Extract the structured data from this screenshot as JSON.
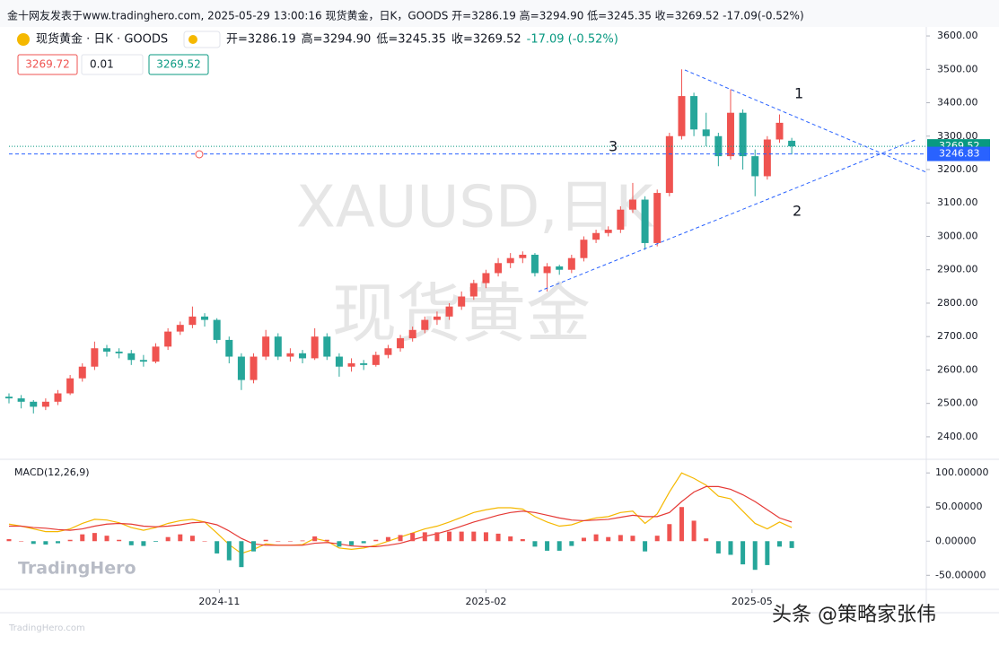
{
  "header": {
    "caption": "金十网友发表于www.tradinghero.com, 2025-05-29 13:00:16 现货黄金，日K，GOODS 开=3286.19 高=3294.90 低=3245.35 收=3269.52 -17.09(-0.52%)",
    "legend_title": "现货黄金 · 日K · GOODS",
    "legend_items": [
      "开=3286.19",
      "高=3294.90",
      "低=3245.35",
      "收=3269.52",
      "-17.09 (-0.52%)"
    ],
    "inputs": [
      "3269.72",
      "0.01",
      "3269.52"
    ]
  },
  "watermark": [
    "XAUUSD,日K",
    "现货黄金"
  ],
  "annotations": [
    "1",
    "2",
    "3"
  ],
  "footer": {
    "logo": "TradingHero",
    "site": "TradingHero.com",
    "credit": "头条 @策略家张伟"
  },
  "chart_data": [
    {
      "type": "candlestick",
      "up_color": "#ef5350",
      "down_color": "#26a69a",
      "xlim": [
        0,
        75
      ],
      "ylim": [
        2338,
        3627
      ],
      "xticks": [
        {
          "value": 17.2,
          "label": "2024-11"
        },
        {
          "value": 39,
          "label": "2025-02"
        },
        {
          "value": 60.75,
          "label": "2025-05"
        }
      ],
      "yticks": [
        {
          "value": 2400,
          "label": "2400.00"
        },
        {
          "value": 2500,
          "label": "2500.00"
        },
        {
          "value": 2600,
          "label": "2600.00"
        },
        {
          "value": 2700,
          "label": "2700.00"
        },
        {
          "value": 2800,
          "label": "2800.00"
        },
        {
          "value": 2900,
          "label": "2900.00"
        },
        {
          "value": 3000,
          "label": "3000.00"
        },
        {
          "value": 3100,
          "label": "3100.00"
        },
        {
          "value": 3200,
          "label": "3200.00"
        },
        {
          "value": 3300,
          "label": "3300.00"
        },
        {
          "value": 3400,
          "label": "3400.00"
        },
        {
          "value": 3500,
          "label": "3500.00"
        },
        {
          "value": 3600,
          "label": "3600.00"
        }
      ],
      "price_lines": [
        {
          "value": 3269.52,
          "color": "#089981",
          "style": "dotted"
        },
        {
          "value": 3246.83,
          "color": "#2962ff",
          "style": "dashed"
        }
      ],
      "candles": [
        [
          2520,
          2530,
          2500,
          2515
        ],
        [
          2515,
          2525,
          2485,
          2505
        ],
        [
          2505,
          2510,
          2470,
          2490
        ],
        [
          2490,
          2515,
          2480,
          2505
        ],
        [
          2505,
          2540,
          2495,
          2530
        ],
        [
          2530,
          2585,
          2525,
          2575
        ],
        [
          2575,
          2620,
          2565,
          2610
        ],
        [
          2610,
          2685,
          2600,
          2665
        ],
        [
          2665,
          2675,
          2640,
          2655
        ],
        [
          2655,
          2665,
          2635,
          2650
        ],
        [
          2650,
          2660,
          2615,
          2630
        ],
        [
          2630,
          2645,
          2610,
          2625
        ],
        [
          2625,
          2680,
          2620,
          2670
        ],
        [
          2670,
          2725,
          2660,
          2715
        ],
        [
          2715,
          2745,
          2705,
          2735
        ],
        [
          2735,
          2790,
          2725,
          2760
        ],
        [
          2760,
          2770,
          2730,
          2750
        ],
        [
          2750,
          2755,
          2680,
          2690
        ],
        [
          2690,
          2700,
          2620,
          2640
        ],
        [
          2640,
          2650,
          2540,
          2570
        ],
        [
          2570,
          2650,
          2560,
          2640
        ],
        [
          2640,
          2720,
          2630,
          2700
        ],
        [
          2700,
          2710,
          2630,
          2640
        ],
        [
          2640,
          2665,
          2625,
          2650
        ],
        [
          2650,
          2660,
          2620,
          2635
        ],
        [
          2635,
          2725,
          2630,
          2700
        ],
        [
          2700,
          2710,
          2630,
          2640
        ],
        [
          2640,
          2650,
          2580,
          2610
        ],
        [
          2610,
          2635,
          2595,
          2620
        ],
        [
          2620,
          2630,
          2600,
          2615
        ],
        [
          2615,
          2655,
          2610,
          2645
        ],
        [
          2645,
          2675,
          2635,
          2665
        ],
        [
          2665,
          2705,
          2655,
          2695
        ],
        [
          2695,
          2730,
          2685,
          2720
        ],
        [
          2720,
          2760,
          2710,
          2750
        ],
        [
          2750,
          2775,
          2735,
          2760
        ],
        [
          2760,
          2800,
          2750,
          2790
        ],
        [
          2790,
          2835,
          2780,
          2820
        ],
        [
          2820,
          2870,
          2810,
          2860
        ],
        [
          2860,
          2900,
          2845,
          2890
        ],
        [
          2890,
          2935,
          2880,
          2920
        ],
        [
          2920,
          2950,
          2905,
          2935
        ],
        [
          2935,
          2955,
          2920,
          2945
        ],
        [
          2945,
          2950,
          2880,
          2890
        ],
        [
          2890,
          2920,
          2835,
          2910
        ],
        [
          2910,
          2915,
          2885,
          2900
        ],
        [
          2900,
          2945,
          2890,
          2935
        ],
        [
          2935,
          3000,
          2925,
          2990
        ],
        [
          2990,
          3020,
          2980,
          3010
        ],
        [
          3010,
          3030,
          3000,
          3020
        ],
        [
          3020,
          3090,
          3010,
          3080
        ],
        [
          3080,
          3160,
          3070,
          3110
        ],
        [
          3110,
          3120,
          2960,
          2980
        ],
        [
          2980,
          3140,
          2970,
          3130
        ],
        [
          3130,
          3310,
          3120,
          3300
        ],
        [
          3300,
          3500,
          3290,
          3420
        ],
        [
          3420,
          3430,
          3300,
          3320
        ],
        [
          3320,
          3370,
          3270,
          3300
        ],
        [
          3300,
          3310,
          3210,
          3240
        ],
        [
          3240,
          3440,
          3230,
          3370
        ],
        [
          3370,
          3380,
          3200,
          3240
        ],
        [
          3240,
          3260,
          3120,
          3180
        ],
        [
          3180,
          3300,
          3170,
          3290
        ],
        [
          3290,
          3365,
          3280,
          3340
        ],
        [
          3286.19,
          3294.9,
          3245.35,
          3269.52
        ]
      ]
    },
    {
      "type": "macd",
      "title": "MACD(12,26,9)",
      "xlim": [
        0,
        75
      ],
      "ylim": [
        -68,
        116
      ],
      "yticks": [
        {
          "value": -50,
          "label": "-50.00000"
        },
        {
          "value": 0,
          "label": "0.00000"
        },
        {
          "value": 50,
          "label": "50.00000"
        },
        {
          "value": 100,
          "label": "100.00000"
        }
      ],
      "series": [
        {
          "style": "line",
          "color": "#f5b800",
          "values": [
            25,
            22,
            18,
            14,
            14,
            18,
            26,
            32,
            31,
            27,
            20,
            16,
            20,
            26,
            30,
            32,
            28,
            12,
            -5,
            -18,
            -12,
            -4,
            -6,
            -6,
            -5,
            4,
            0,
            -10,
            -12,
            -10,
            -6,
            0,
            6,
            12,
            18,
            22,
            28,
            35,
            42,
            46,
            49,
            49,
            47,
            36,
            28,
            22,
            24,
            30,
            34,
            36,
            42,
            44,
            26,
            40,
            72,
            100,
            92,
            82,
            66,
            62,
            44,
            26,
            18,
            28,
            20
          ]
        },
        {
          "style": "line",
          "color": "#e53935",
          "values": [
            22,
            22,
            20,
            19,
            17,
            16,
            18,
            22,
            25,
            26,
            25,
            22,
            21,
            22,
            24,
            27,
            28,
            24,
            15,
            4,
            -4,
            -6,
            -6,
            -6,
            -6,
            -3,
            -2,
            -4,
            -7,
            -8,
            -8,
            -6,
            -3,
            2,
            7,
            11,
            16,
            22,
            28,
            33,
            38,
            42,
            44,
            42,
            38,
            34,
            31,
            30,
            31,
            32,
            35,
            38,
            36,
            36,
            42,
            58,
            72,
            80,
            80,
            76,
            68,
            58,
            46,
            34,
            28
          ]
        },
        {
          "style": "histogram",
          "color": "#ef5350",
          "negative_color": "#26a69a",
          "values": [
            3,
            0,
            -4,
            -5,
            -3,
            2,
            10,
            12,
            8,
            2,
            -6,
            -7,
            -1,
            6,
            10,
            8,
            0,
            -18,
            -28,
            -38,
            -15,
            2,
            0,
            0,
            1,
            7,
            2,
            -8,
            -6,
            -3,
            2,
            6,
            9,
            12,
            13,
            13,
            14,
            14,
            14,
            13,
            11,
            7,
            3,
            -8,
            -14,
            -14,
            -7,
            5,
            10,
            6,
            9,
            8,
            -15,
            8,
            25,
            50,
            30,
            4,
            -18,
            -20,
            -34,
            -42,
            -35,
            -8,
            -10
          ]
        }
      ]
    }
  ]
}
